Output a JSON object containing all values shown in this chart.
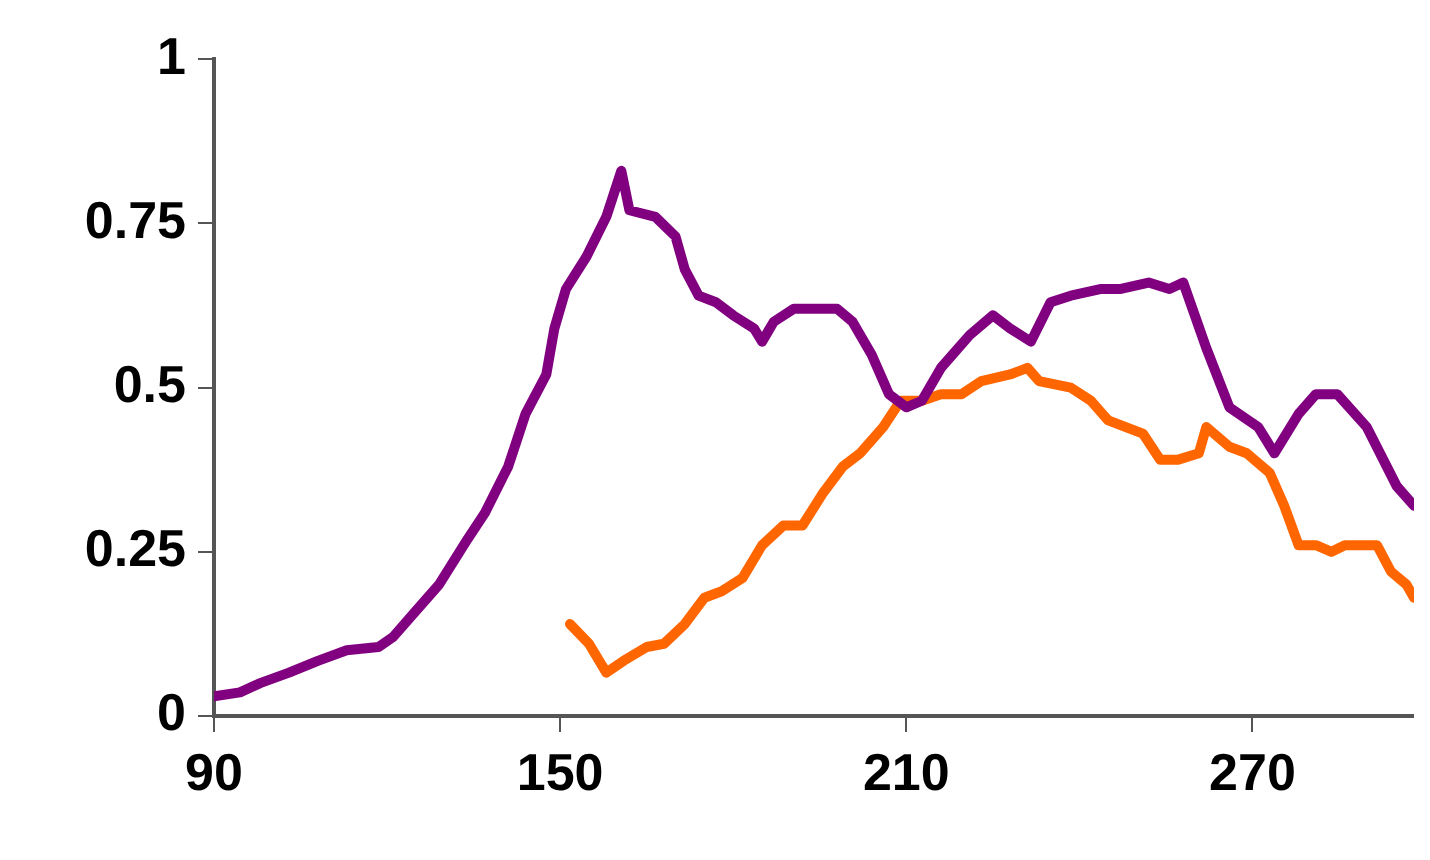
{
  "chart_data": {
    "type": "line",
    "xlim": [
      90,
      298
    ],
    "xticks": [
      90,
      150,
      210,
      270
    ],
    "ylim": [
      0,
      1
    ],
    "yticks": [
      0,
      0.25,
      0.5,
      0.75,
      1
    ],
    "grid": false,
    "legend": false,
    "marker": "none",
    "line_style": "solid",
    "series": [
      {
        "color": "#800080",
        "x": [
          90,
          94.5,
          98,
          103,
          108,
          113,
          118.5,
          121,
          125,
          129,
          134,
          137,
          141,
          144,
          147.6,
          149,
          151,
          154.6,
          158,
          160.6,
          162,
          166.5,
          170,
          171.6,
          174,
          177,
          180,
          183.6,
          185,
          187,
          190.5,
          194,
          198,
          200.7,
          204,
          207,
          210,
          212.7,
          216,
          221,
          225,
          228,
          231.6,
          235,
          238.5,
          243.6,
          247,
          252,
          255.6,
          258,
          262,
          266,
          271,
          273.8,
          278,
          281,
          284.7,
          289.8,
          295,
          298
        ],
        "values": [
          0.03,
          0.036,
          0.05,
          0.066,
          0.084,
          0.1,
          0.105,
          0.12,
          0.16,
          0.2,
          0.27,
          0.31,
          0.38,
          0.46,
          0.52,
          0.59,
          0.65,
          0.7,
          0.76,
          0.83,
          0.77,
          0.76,
          0.73,
          0.68,
          0.64,
          0.63,
          0.61,
          0.59,
          0.57,
          0.6,
          0.62,
          0.62,
          0.62,
          0.6,
          0.55,
          0.49,
          0.47,
          0.48,
          0.53,
          0.58,
          0.61,
          0.59,
          0.57,
          0.63,
          0.64,
          0.65,
          0.65,
          0.66,
          0.65,
          0.66,
          0.56,
          0.47,
          0.44,
          0.4,
          0.46,
          0.49,
          0.49,
          0.44,
          0.35,
          0.32
        ]
      },
      {
        "color": "#ff6600",
        "x": [
          151.7,
          155,
          158,
          161,
          165,
          168,
          171.6,
          175,
          178,
          181.6,
          185,
          188.7,
          192,
          195.6,
          199,
          202,
          206,
          209,
          212.7,
          216,
          219.6,
          223,
          228,
          231,
          233,
          238.5,
          242,
          245,
          251,
          254,
          257,
          260.7,
          262,
          266,
          269,
          273,
          275.5,
          278,
          281,
          283.7,
          286,
          291.6,
          294,
          296.7,
          298
        ],
        "values": [
          0.14,
          0.11,
          0.066,
          0.084,
          0.105,
          0.11,
          0.14,
          0.18,
          0.19,
          0.21,
          0.26,
          0.29,
          0.29,
          0.34,
          0.38,
          0.4,
          0.44,
          0.48,
          0.48,
          0.49,
          0.49,
          0.51,
          0.52,
          0.53,
          0.51,
          0.5,
          0.48,
          0.45,
          0.43,
          0.39,
          0.39,
          0.4,
          0.44,
          0.41,
          0.4,
          0.37,
          0.32,
          0.26,
          0.26,
          0.25,
          0.26,
          0.26,
          0.22,
          0.2,
          0.18
        ]
      }
    ]
  }
}
